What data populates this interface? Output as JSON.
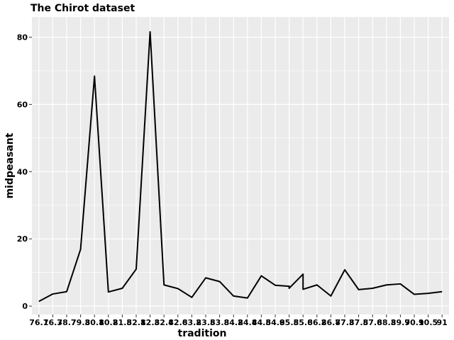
{
  "chart_data": {
    "type": "line",
    "title": "The Chirot dataset",
    "xlabel": "tradition",
    "ylabel": "midpeasant",
    "ylim": [
      -2.5,
      86
    ],
    "yticks": [
      0,
      20,
      40,
      60,
      80
    ],
    "grid": true,
    "categories": [
      "76.1",
      "76.3",
      "78.7",
      "79.3",
      "80.1",
      "80.2",
      "81.5",
      "82.1",
      "82.3",
      "82.4",
      "82.6",
      "83.2",
      "83.5",
      "83.8",
      "84.2",
      "84.4",
      "84.5",
      "84.9",
      "85.5",
      "85.6",
      "86.2",
      "86.7",
      "87.3",
      "87.5",
      "87.6",
      "88.3",
      "89.7",
      "90.1",
      "90.5",
      "91"
    ],
    "points": [
      {
        "x": "76.1",
        "y": 1.4
      },
      {
        "x": "76.3",
        "y": 3.6
      },
      {
        "x": "78.7",
        "y": 4.3
      },
      {
        "x": "79.3",
        "y": 16.9
      },
      {
        "x": "80.1",
        "y": 68.4
      },
      {
        "x": "80.2",
        "y": 4.2
      },
      {
        "x": "81.5",
        "y": 5.3
      },
      {
        "x": "82.1",
        "y": 11.0
      },
      {
        "x": "82.3",
        "y": 81.6
      },
      {
        "x": "82.4",
        "y": 6.3
      },
      {
        "x": "82.6",
        "y": 5.2
      },
      {
        "x": "83.2",
        "y": 2.6
      },
      {
        "x": "83.5",
        "y": 8.4
      },
      {
        "x": "83.8",
        "y": 7.3
      },
      {
        "x": "84.2",
        "y": 3.0
      },
      {
        "x": "84.4",
        "y": 2.4
      },
      {
        "x": "84.5",
        "y": 9.0
      },
      {
        "x": "84.9",
        "y": 6.2
      },
      {
        "x": "85.5",
        "y": 5.9
      },
      {
        "x": "85.5",
        "y": 5.3
      },
      {
        "x": "85.6",
        "y": 9.5
      },
      {
        "x": "85.6",
        "y": 5.0
      },
      {
        "x": "86.2",
        "y": 6.3
      },
      {
        "x": "86.7",
        "y": 3.0
      },
      {
        "x": "87.3",
        "y": 10.8
      },
      {
        "x": "87.5",
        "y": 4.9
      },
      {
        "x": "87.6",
        "y": 5.3
      },
      {
        "x": "88.3",
        "y": 6.3
      },
      {
        "x": "89.7",
        "y": 6.6
      },
      {
        "x": "90.1",
        "y": 3.5
      },
      {
        "x": "90.5",
        "y": 3.8
      },
      {
        "x": "91",
        "y": 4.3
      }
    ],
    "line_color": "#000000",
    "panel_color": "#ebebeb",
    "grid_color": "#ffffff"
  }
}
